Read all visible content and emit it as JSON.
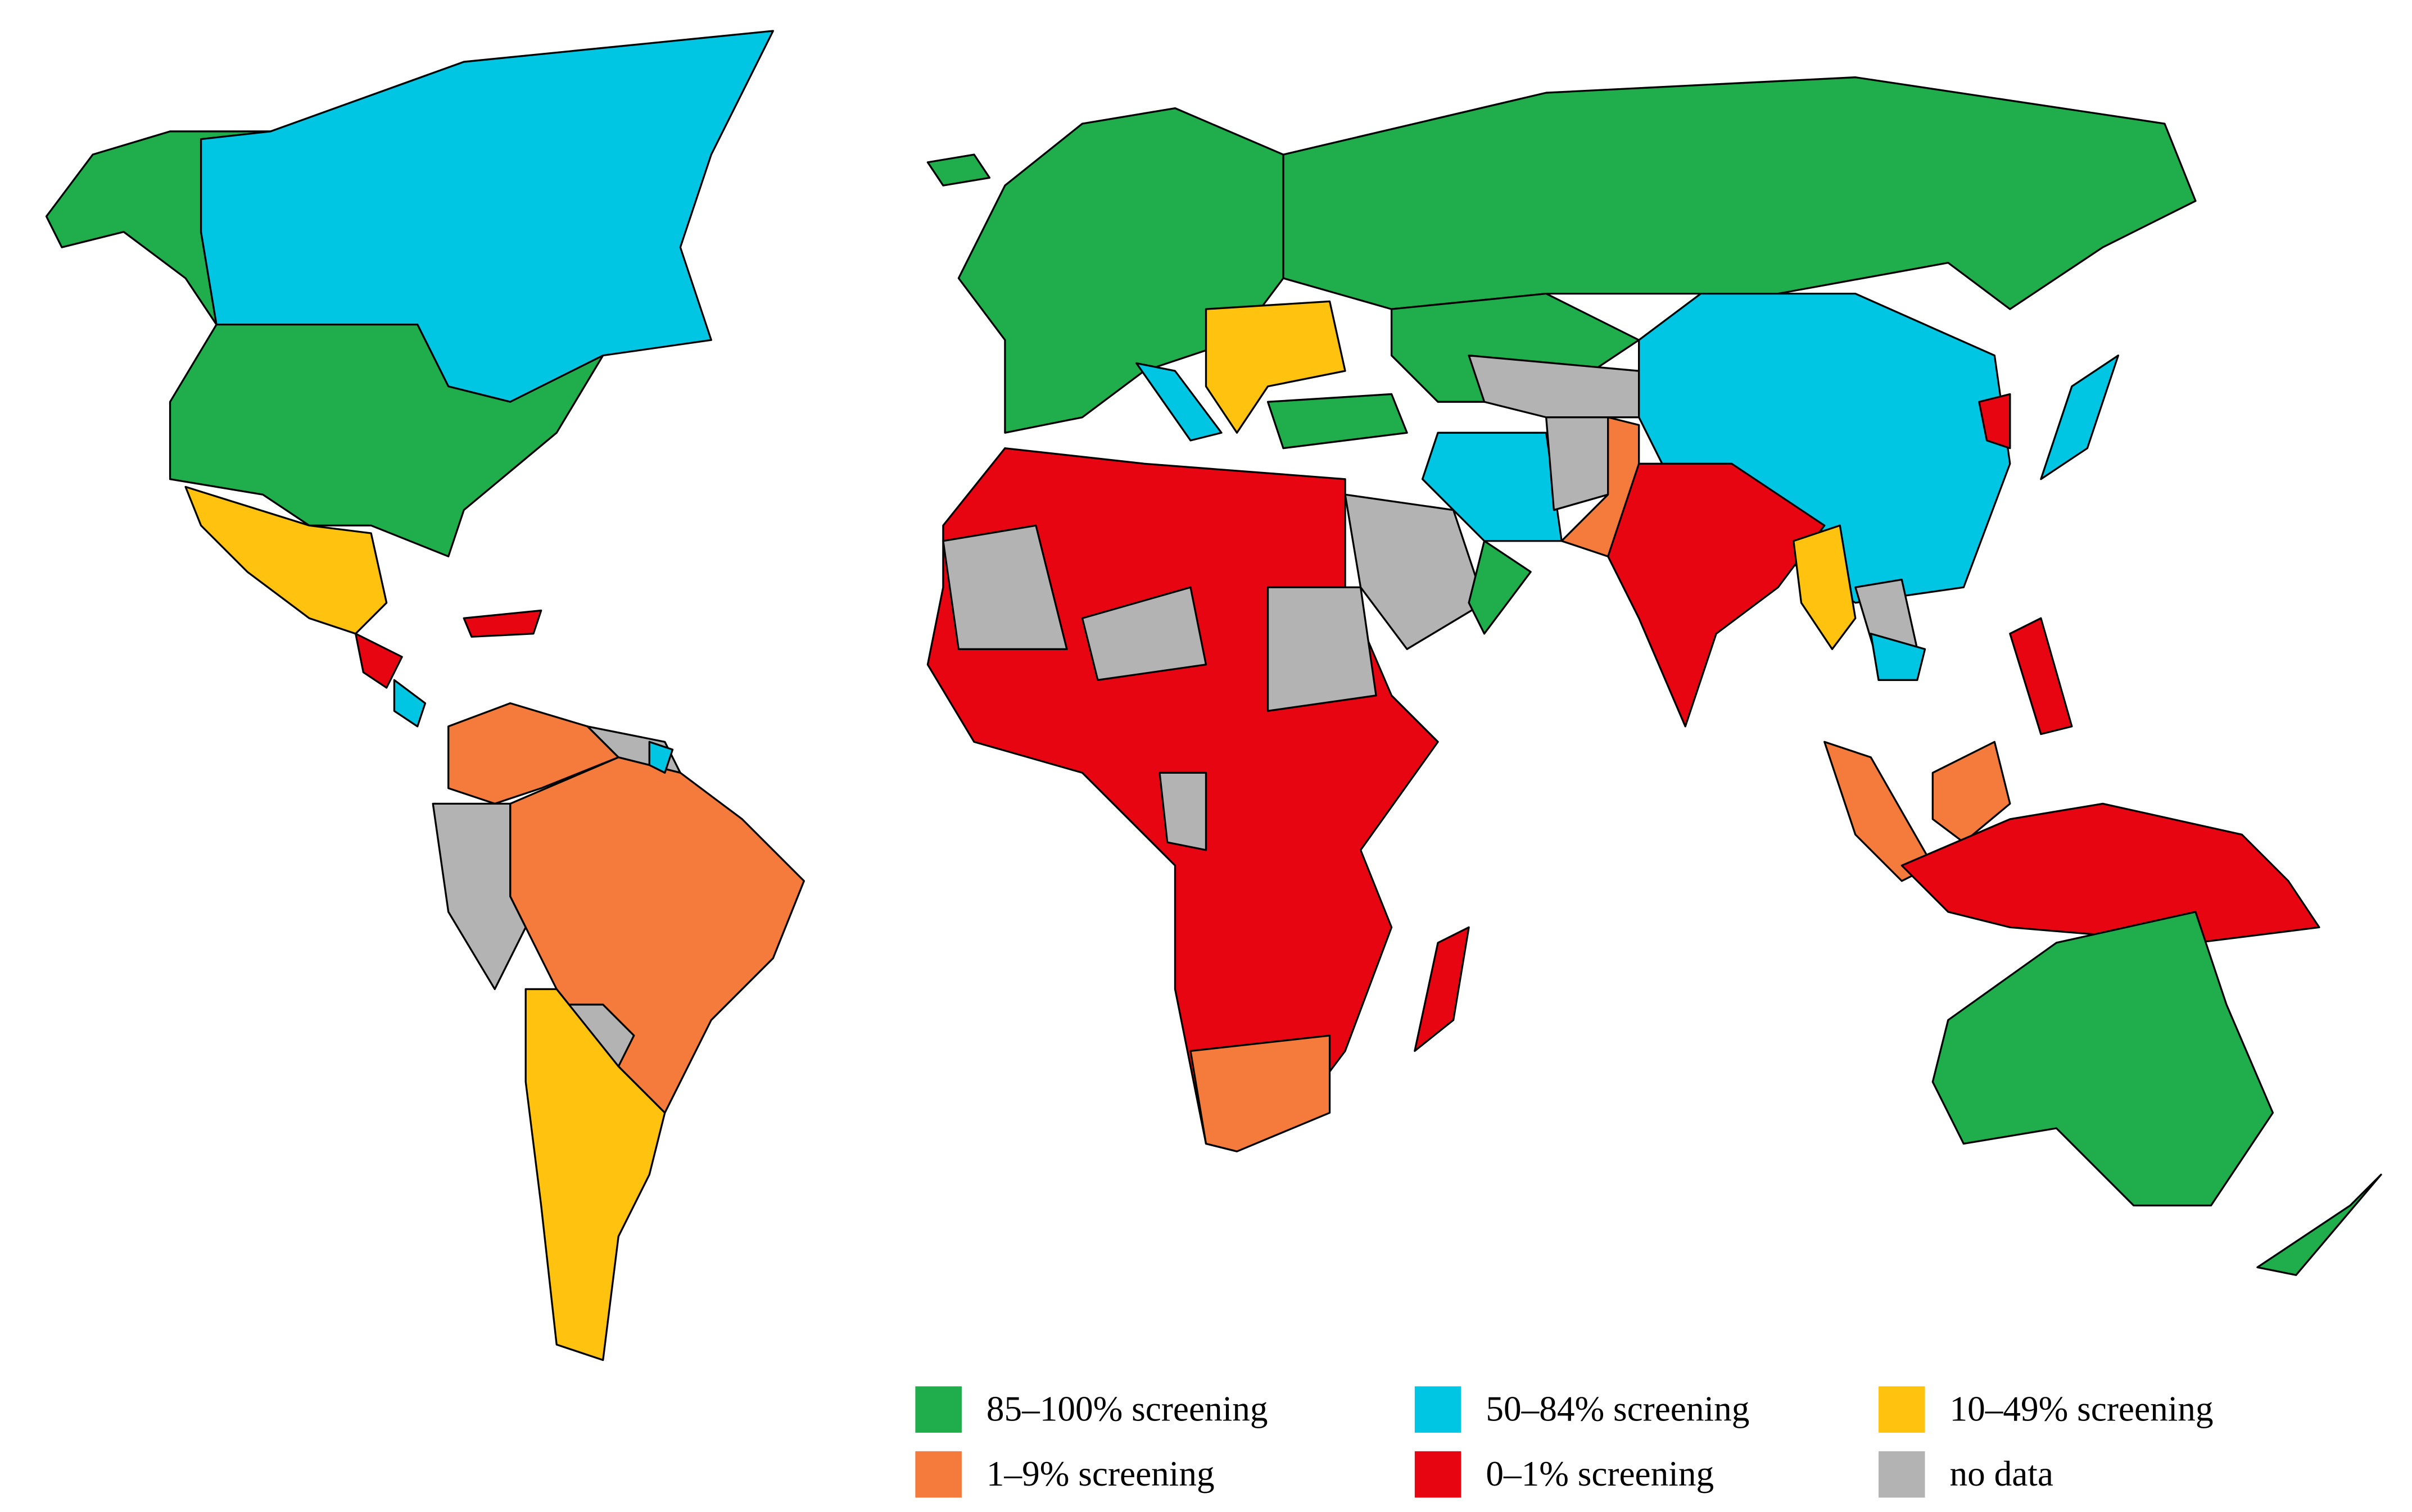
{
  "legend": {
    "items": [
      {
        "label": "85–100% screening",
        "color": "#1fae4b"
      },
      {
        "label": "50–84% screening",
        "color": "#00c6e4"
      },
      {
        "label": "10–49% screening",
        "color": "#ffc20e"
      },
      {
        "label": "1–9% screening",
        "color": "#f47b3c"
      },
      {
        "label": "0–1% screening",
        "color": "#e60511"
      },
      {
        "label": "no data",
        "color": "#b3b3b3"
      }
    ]
  }
}
